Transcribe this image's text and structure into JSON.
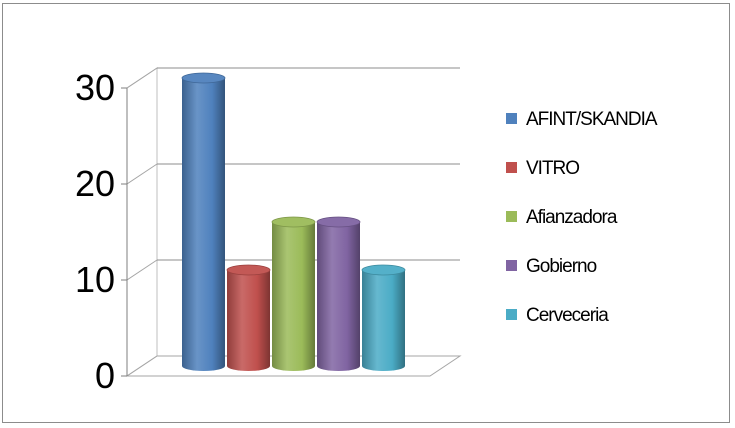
{
  "chart_data": {
    "type": "bar",
    "title": "",
    "xlabel": "",
    "ylabel": "",
    "ylim": [
      0,
      30
    ],
    "yticks": [
      0,
      10,
      20,
      30
    ],
    "grid": true,
    "legend_position": "right",
    "style": "3d-cylinder",
    "series": [
      {
        "name": "AFINT/SKANDIA",
        "values": [
          30
        ],
        "color": "#4f81bd"
      },
      {
        "name": "VITRO",
        "values": [
          10
        ],
        "color": "#c0504d"
      },
      {
        "name": "Afianzadora",
        "values": [
          15
        ],
        "color": "#9bbb59"
      },
      {
        "name": "Gobierno",
        "values": [
          15
        ],
        "color": "#8064a2"
      },
      {
        "name": "Cerveceria",
        "values": [
          10
        ],
        "color": "#4bacc6"
      }
    ]
  }
}
